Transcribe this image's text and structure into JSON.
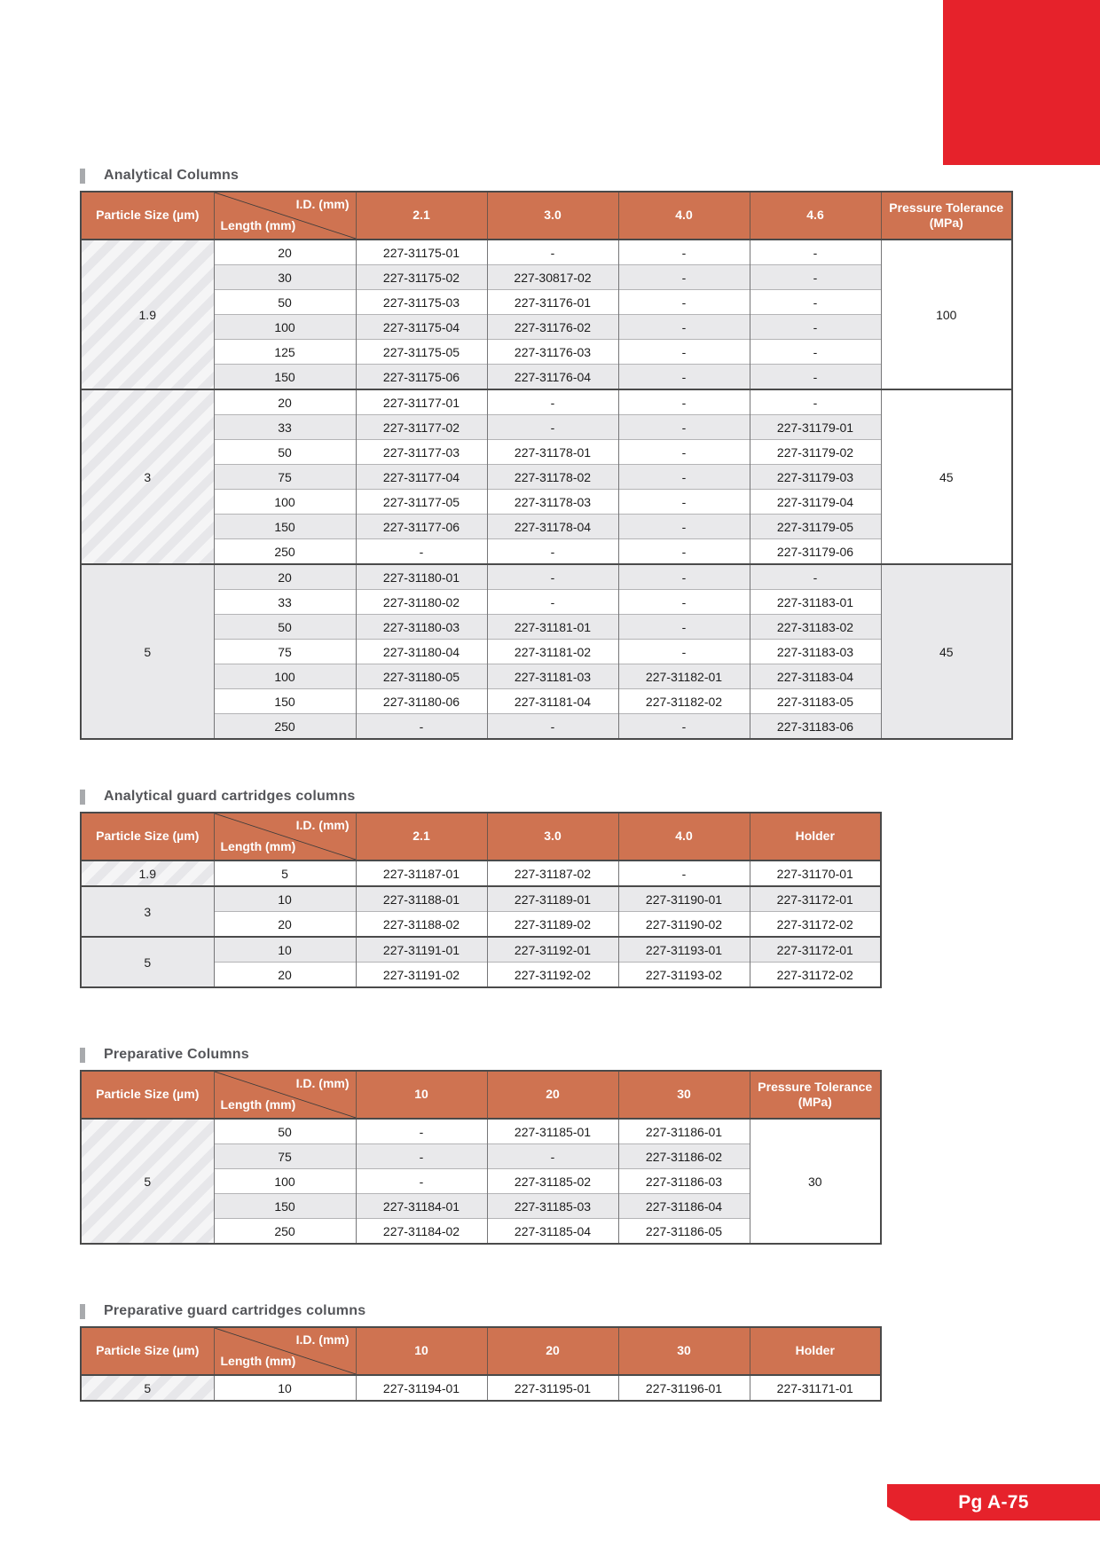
{
  "page": {
    "footer_label": "Pg A-75"
  },
  "colors": {
    "accent_orange": "#cf7351",
    "brand_red": "#e6222b",
    "stripe_gray": "#e9e9eb",
    "title_gray": "#55565a"
  },
  "corner": {
    "top_label": "I.D. (mm)",
    "bottom_label": "Length (mm)"
  },
  "sections": [
    {
      "title": "Analytical Columns",
      "first_col_header": "Particle Size (µm)",
      "data_col_headers": [
        "2.1",
        "3.0",
        "4.0",
        "4.6"
      ],
      "merged_col_header": "Pressure Tolerance (MPa)",
      "groups": [
        {
          "particle_size": "1.9",
          "merged_value": "100",
          "rows": [
            {
              "length": "20",
              "cells": [
                "227-31175-01",
                "-",
                "-",
                "-"
              ]
            },
            {
              "length": "30",
              "cells": [
                "227-31175-02",
                "227-30817-02",
                "-",
                "-"
              ]
            },
            {
              "length": "50",
              "cells": [
                "227-31175-03",
                "227-31176-01",
                "-",
                "-"
              ]
            },
            {
              "length": "100",
              "cells": [
                "227-31175-04",
                "227-31176-02",
                "-",
                "-"
              ]
            },
            {
              "length": "125",
              "cells": [
                "227-31175-05",
                "227-31176-03",
                "-",
                "-"
              ]
            },
            {
              "length": "150",
              "cells": [
                "227-31175-06",
                "227-31176-04",
                "-",
                "-"
              ]
            }
          ]
        },
        {
          "particle_size": "3",
          "merged_value": "45",
          "rows": [
            {
              "length": "20",
              "cells": [
                "227-31177-01",
                "-",
                "-",
                "-"
              ]
            },
            {
              "length": "33",
              "cells": [
                "227-31177-02",
                "-",
                "-",
                "227-31179-01"
              ]
            },
            {
              "length": "50",
              "cells": [
                "227-31177-03",
                "227-31178-01",
                "-",
                "227-31179-02"
              ]
            },
            {
              "length": "75",
              "cells": [
                "227-31177-04",
                "227-31178-02",
                "-",
                "227-31179-03"
              ]
            },
            {
              "length": "100",
              "cells": [
                "227-31177-05",
                "227-31178-03",
                "-",
                "227-31179-04"
              ]
            },
            {
              "length": "150",
              "cells": [
                "227-31177-06",
                "227-31178-04",
                "-",
                "227-31179-05"
              ]
            },
            {
              "length": "250",
              "cells": [
                "-",
                "-",
                "-",
                "227-31179-06"
              ]
            }
          ]
        },
        {
          "particle_size": "5",
          "merged_value": "45",
          "rows": [
            {
              "length": "20",
              "cells": [
                "227-31180-01",
                "-",
                "-",
                "-"
              ]
            },
            {
              "length": "33",
              "cells": [
                "227-31180-02",
                "-",
                "-",
                "227-31183-01"
              ]
            },
            {
              "length": "50",
              "cells": [
                "227-31180-03",
                "227-31181-01",
                "-",
                "227-31183-02"
              ]
            },
            {
              "length": "75",
              "cells": [
                "227-31180-04",
                "227-31181-02",
                "-",
                "227-31183-03"
              ]
            },
            {
              "length": "100",
              "cells": [
                "227-31180-05",
                "227-31181-03",
                "227-31182-01",
                "227-31183-04"
              ]
            },
            {
              "length": "150",
              "cells": [
                "227-31180-06",
                "227-31181-04",
                "227-31182-02",
                "227-31183-05"
              ]
            },
            {
              "length": "250",
              "cells": [
                "-",
                "-",
                "-",
                "227-31183-06"
              ]
            }
          ]
        }
      ]
    },
    {
      "title": "Analytical guard cartridges columns",
      "first_col_header": "Particle Size (µm)",
      "data_col_headers": [
        "2.1",
        "3.0",
        "4.0",
        "Holder"
      ],
      "merged_col_header": null,
      "groups": [
        {
          "particle_size": "1.9",
          "rows": [
            {
              "length": "5",
              "cells": [
                "227-31187-01",
                "227-31187-02",
                "-",
                "227-31170-01"
              ]
            }
          ]
        },
        {
          "particle_size": "3",
          "rows": [
            {
              "length": "10",
              "cells": [
                "227-31188-01",
                "227-31189-01",
                "227-31190-01",
                "227-31172-01"
              ]
            },
            {
              "length": "20",
              "cells": [
                "227-31188-02",
                "227-31189-02",
                "227-31190-02",
                "227-31172-02"
              ]
            }
          ]
        },
        {
          "particle_size": "5",
          "rows": [
            {
              "length": "10",
              "cells": [
                "227-31191-01",
                "227-31192-01",
                "227-31193-01",
                "227-31172-01"
              ]
            },
            {
              "length": "20",
              "cells": [
                "227-31191-02",
                "227-31192-02",
                "227-31193-02",
                "227-31172-02"
              ]
            }
          ]
        }
      ]
    },
    {
      "title": "Preparative Columns",
      "first_col_header": "Particle Size (µm)",
      "data_col_headers": [
        "10",
        "20",
        "30"
      ],
      "merged_col_header": "Pressure Tolerance (MPa)",
      "groups": [
        {
          "particle_size": "5",
          "merged_value": "30",
          "rows": [
            {
              "length": "50",
              "cells": [
                "-",
                "227-31185-01",
                "227-31186-01"
              ]
            },
            {
              "length": "75",
              "cells": [
                "-",
                "-",
                "227-31186-02"
              ]
            },
            {
              "length": "100",
              "cells": [
                "-",
                "227-31185-02",
                "227-31186-03"
              ]
            },
            {
              "length": "150",
              "cells": [
                "227-31184-01",
                "227-31185-03",
                "227-31186-04"
              ]
            },
            {
              "length": "250",
              "cells": [
                "227-31184-02",
                "227-31185-04",
                "227-31186-05"
              ]
            }
          ]
        }
      ]
    },
    {
      "title": "Preparative guard cartridges columns",
      "first_col_header": "Particle Size (µm)",
      "data_col_headers": [
        "10",
        "20",
        "30",
        "Holder"
      ],
      "merged_col_header": null,
      "groups": [
        {
          "particle_size": "5",
          "rows": [
            {
              "length": "10",
              "cells": [
                "227-31194-01",
                "227-31195-01",
                "227-31196-01",
                "227-31171-01"
              ]
            }
          ]
        }
      ]
    }
  ]
}
